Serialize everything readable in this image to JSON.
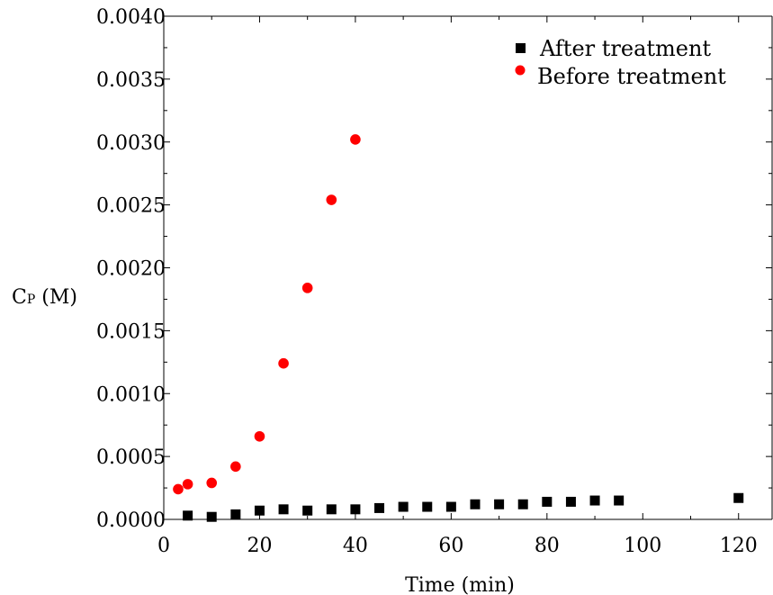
{
  "chart_data": {
    "type": "scatter",
    "xlabel": "Time (min)",
    "ylabel_main": "C",
    "ylabel_sub": "P",
    "ylabel_unit": " (M)",
    "xlim": [
      0,
      127
    ],
    "ylim": [
      0,
      0.004
    ],
    "x_ticks": [
      0,
      20,
      40,
      60,
      80,
      100,
      120
    ],
    "x_tick_labels": [
      "0",
      "20",
      "40",
      "60",
      "80",
      "100",
      "120"
    ],
    "y_ticks": [
      0,
      0.0005,
      0.001,
      0.0015,
      0.002,
      0.0025,
      0.003,
      0.0035,
      0.004
    ],
    "y_tick_labels": [
      "0.0000",
      "0.0005",
      "0.0010",
      "0.0015",
      "0.0020",
      "0.0025",
      "0.0030",
      "0.0035",
      "0.0040"
    ],
    "legend_position": "top-right",
    "series": [
      {
        "name": "After treatment",
        "marker": "square",
        "color": "#000000",
        "x": [
          5,
          10,
          15,
          20,
          25,
          30,
          35,
          40,
          45,
          50,
          55,
          60,
          65,
          70,
          75,
          80,
          85,
          90,
          95,
          120
        ],
        "y": [
          3e-05,
          2e-05,
          4e-05,
          7e-05,
          8e-05,
          7e-05,
          8e-05,
          8e-05,
          9e-05,
          0.0001,
          0.0001,
          0.0001,
          0.00012,
          0.00012,
          0.00012,
          0.00014,
          0.00014,
          0.00015,
          0.00015,
          0.00017
        ]
      },
      {
        "name": "Before treatment",
        "marker": "circle",
        "color": "#ff0000",
        "x": [
          3,
          5,
          10,
          15,
          20,
          25,
          30,
          35,
          40
        ],
        "y": [
          0.00024,
          0.00028,
          0.00029,
          0.00042,
          0.00066,
          0.00124,
          0.00184,
          0.00254,
          0.00302
        ]
      }
    ]
  }
}
